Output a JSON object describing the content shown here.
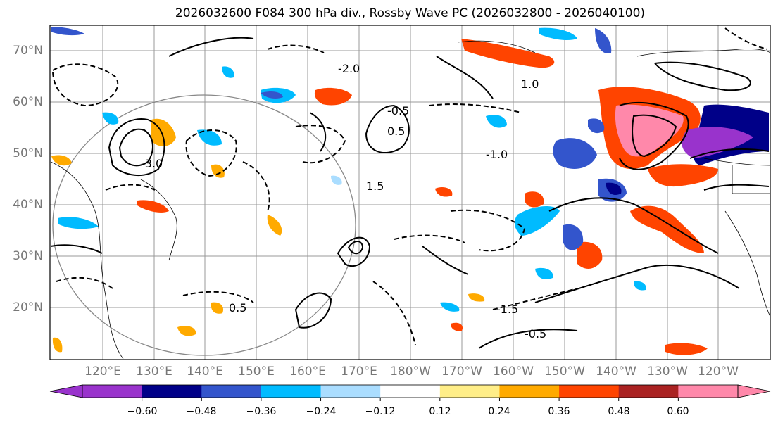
{
  "title": "2026032600 F084 300 hPa div., Rossby Wave PC (2026032800 - 2026040100)",
  "lat_labels": [
    "70°N",
    "60°N",
    "50°N",
    "40°N",
    "30°N",
    "20°N"
  ],
  "lon_labels": [
    "120°E",
    "130°E",
    "140°E",
    "150°E",
    "160°E",
    "170°E",
    "180°W",
    "170°W",
    "160°W",
    "150°W",
    "140°W",
    "130°W",
    "120°W"
  ],
  "colorbar": {
    "ticks": [
      "−0.60",
      "−0.48",
      "−0.36",
      "−0.24",
      "−0.12",
      "0.12",
      "0.24",
      "0.36",
      "0.48",
      "0.60"
    ],
    "colors": [
      "#9933cc",
      "#000088",
      "#3355cc",
      "#00bbff",
      "#aaddff",
      "#ffffff",
      "#ffee88",
      "#ffaa00",
      "#ff4400",
      "#aa2222",
      "#ff88aa"
    ]
  },
  "contour_labels": [
    "-1.0",
    "-0.5",
    "0.5",
    "1.0",
    "1.5",
    "-1.5",
    "-3.0",
    "-2.0",
    "0.5",
    "-0.5"
  ]
}
